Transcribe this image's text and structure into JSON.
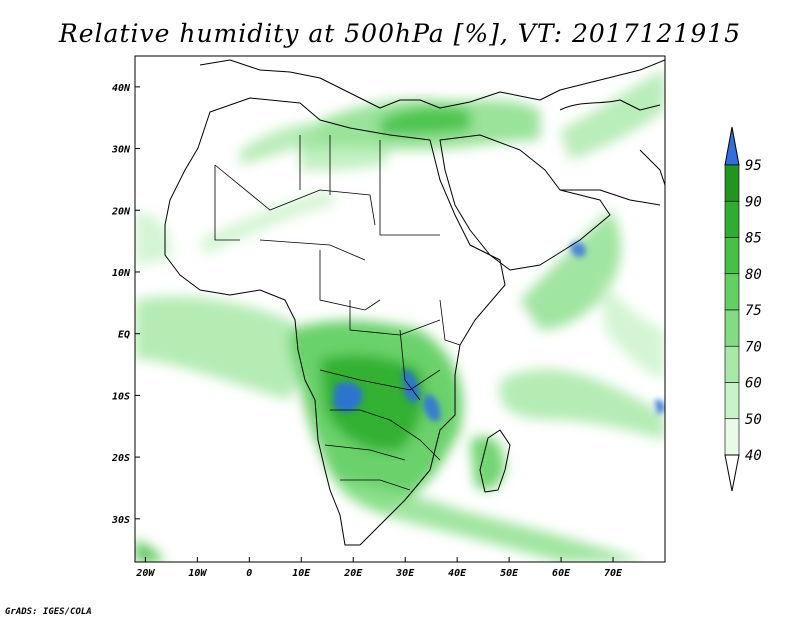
{
  "title": "Relative humidity at 500hPa [%], VT: 2017121915",
  "credit": "GrADS: IGES/COLA",
  "map": {
    "lon_min": -22,
    "lon_max": 80,
    "lat_min": -37,
    "lat_max": 45,
    "lon_ticks": [
      {
        "value": -20,
        "label": "20W"
      },
      {
        "value": -10,
        "label": "10W"
      },
      {
        "value": 0,
        "label": "0"
      },
      {
        "value": 10,
        "label": "10E"
      },
      {
        "value": 20,
        "label": "20E"
      },
      {
        "value": 30,
        "label": "30E"
      },
      {
        "value": 40,
        "label": "40E"
      },
      {
        "value": 50,
        "label": "50E"
      },
      {
        "value": 60,
        "label": "60E"
      },
      {
        "value": 70,
        "label": "70E"
      }
    ],
    "lat_ticks": [
      {
        "value": 40,
        "label": "40N"
      },
      {
        "value": 30,
        "label": "30N"
      },
      {
        "value": 20,
        "label": "20N"
      },
      {
        "value": 10,
        "label": "10N"
      },
      {
        "value": 0,
        "label": "EQ"
      },
      {
        "value": -10,
        "label": "10S"
      },
      {
        "value": -20,
        "label": "20S"
      },
      {
        "value": -30,
        "label": "30S"
      }
    ]
  },
  "colorbar": {
    "levels": [
      {
        "value": "40",
        "color": "#e8fbe8"
      },
      {
        "value": "50",
        "color": "#c8f2c8"
      },
      {
        "value": "60",
        "color": "#a7e9a7"
      },
      {
        "value": "70",
        "color": "#82dd82"
      },
      {
        "value": "75",
        "color": "#62d062"
      },
      {
        "value": "80",
        "color": "#45c245"
      },
      {
        "value": "85",
        "color": "#2ead2e"
      },
      {
        "value": "90",
        "color": "#209620"
      },
      {
        "value": "95",
        "color": "#2f6fe0"
      }
    ],
    "low_color": "#ffffff",
    "high_color": "#2f6fe0"
  }
}
